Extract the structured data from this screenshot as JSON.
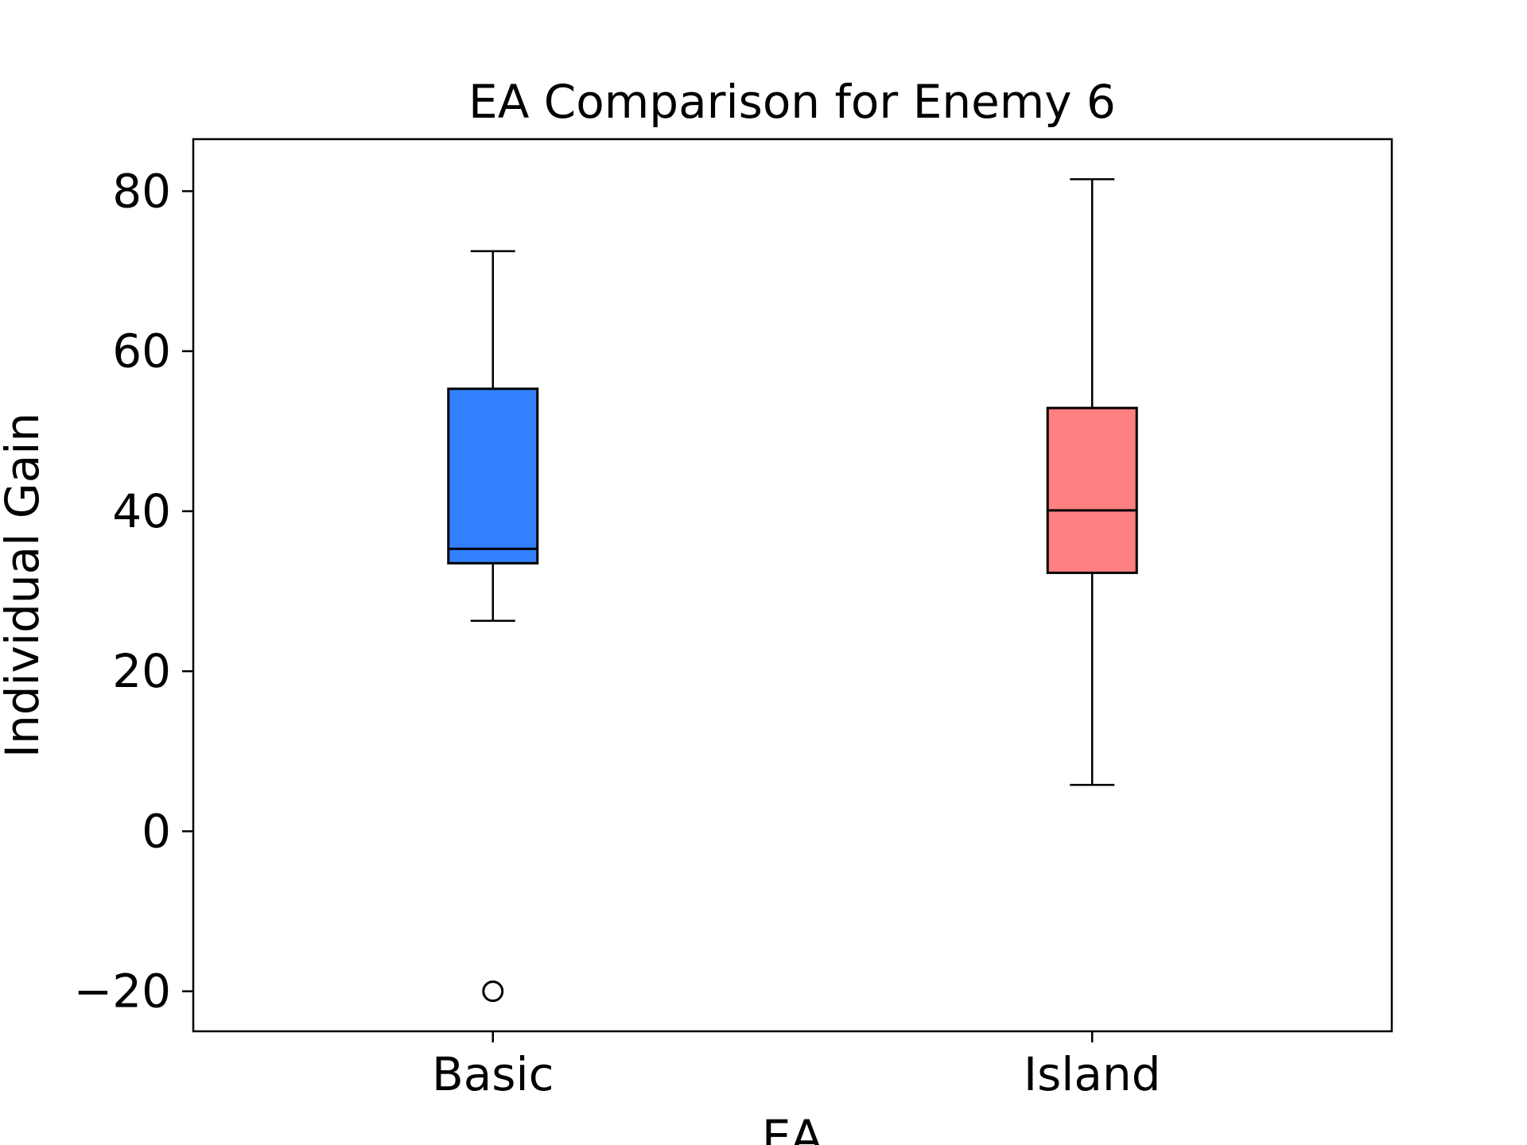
{
  "chart_data": {
    "type": "box",
    "title": "EA Comparison for Enemy 6",
    "xlabel": "EA",
    "ylabel": "Individual Gain",
    "ylim": [
      -25,
      86.5
    ],
    "yticks": [
      -20,
      0,
      20,
      40,
      60,
      80
    ],
    "ytick_labels": [
      "−20",
      "0",
      "20",
      "40",
      "60",
      "80"
    ],
    "categories": [
      "Basic",
      "Island"
    ],
    "grid": false,
    "legend": "none",
    "boxes": [
      {
        "category": "Basic",
        "whisker_low": 26.3,
        "q1": 33.5,
        "median": 35.3,
        "q3": 55.3,
        "whisker_high": 72.5,
        "outliers": [
          -20.0
        ],
        "color": "#3380ff"
      },
      {
        "category": "Island",
        "whisker_low": 5.8,
        "q1": 32.3,
        "median": 40.1,
        "q3": 52.9,
        "whisker_high": 81.5,
        "outliers": [],
        "color": "#ff8080"
      }
    ]
  }
}
